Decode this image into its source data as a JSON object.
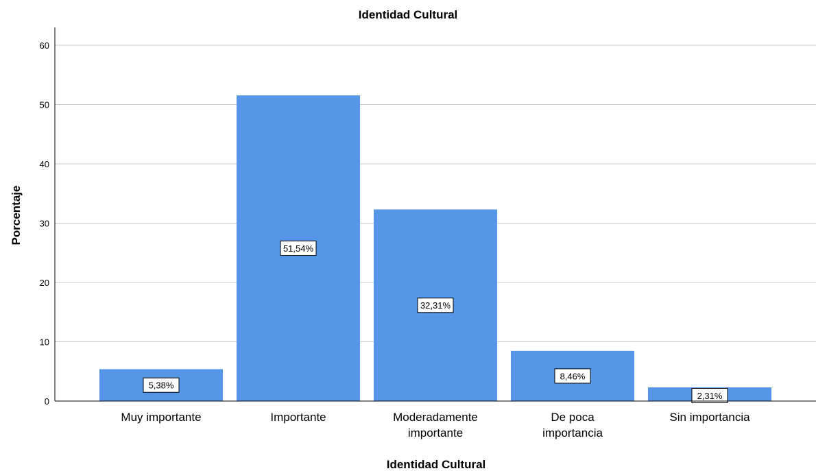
{
  "chart_data": {
    "type": "bar",
    "title": "Identidad Cultural",
    "xlabel": "Identidad Cultural",
    "ylabel": "Porcentaje",
    "categories": [
      [
        "Muy importante"
      ],
      [
        "Importante"
      ],
      [
        "Moderadamente",
        "importante"
      ],
      [
        "De poca",
        "importancia"
      ],
      [
        "Sin importancia"
      ]
    ],
    "values": [
      5.38,
      51.54,
      32.31,
      8.46,
      2.31
    ],
    "data_labels": [
      "5,38%",
      "51,54%",
      "32,31%",
      "8,46%",
      "2,31%"
    ],
    "ylim": [
      0,
      63
    ],
    "yticks": [
      0,
      10,
      20,
      30,
      40,
      50,
      60
    ],
    "grid": true,
    "bar_color": "#5596E6",
    "grid_color": "#c8c8c8"
  }
}
